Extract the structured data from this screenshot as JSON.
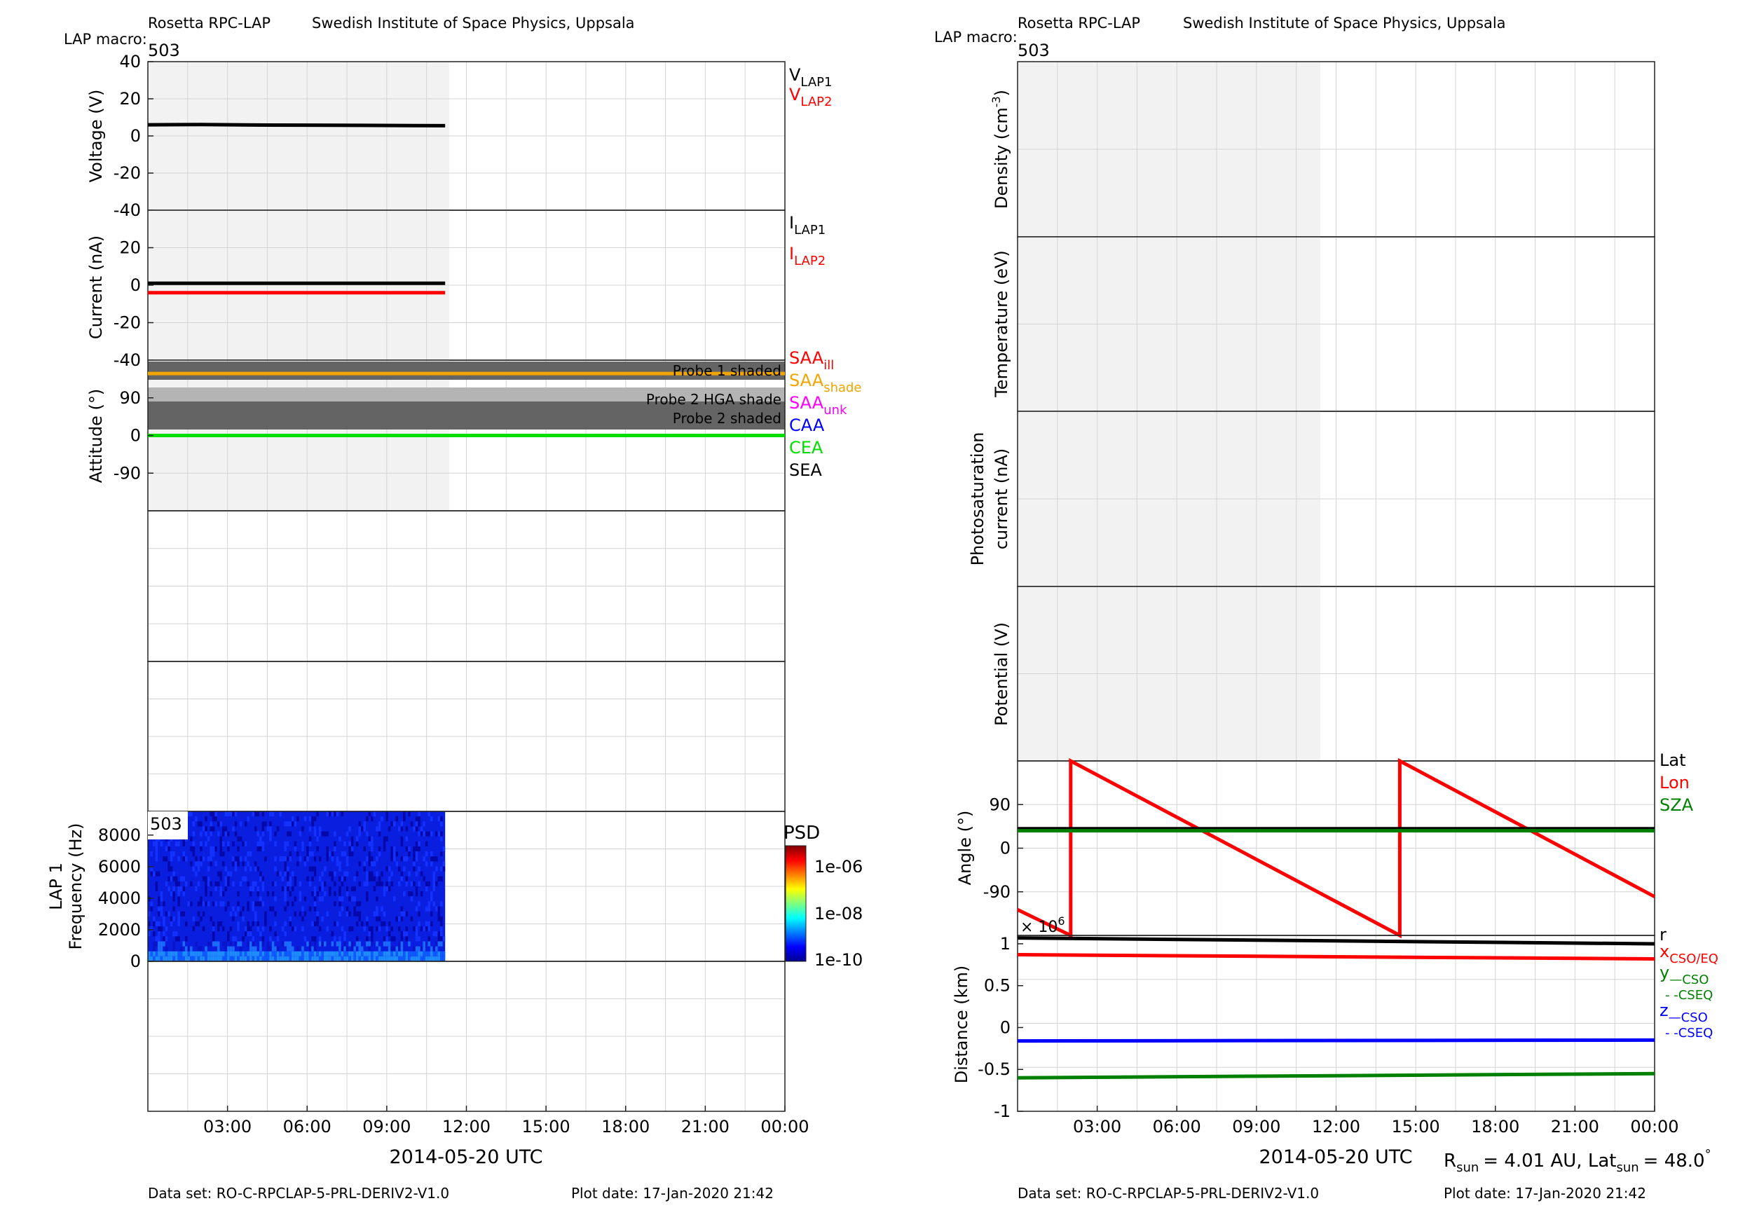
{
  "left_header": {
    "instrument": "Rosetta RPC-LAP",
    "institute": "Swedish Institute of Space Physics, Uppsala",
    "macro_label": "LAP macro:",
    "macro_value": "503"
  },
  "right_header": {
    "instrument": "Rosetta RPC-LAP",
    "institute": "Swedish Institute of Space Physics, Uppsala",
    "macro_label": "LAP macro:",
    "macro_value": "503"
  },
  "left_footer": {
    "x_title": "2014-05-20 UTC",
    "dataset": "Data set: RO-C-RPCLAP-5-PRL-DERIV2-V1.0",
    "plot_date": "Plot date: 17-Jan-2020 21:42"
  },
  "right_footer": {
    "x_title": "2014-05-20 UTC",
    "dataset": "Data set: RO-C-RPCLAP-5-PRL-DERIV2-V1.0",
    "plot_date": "Plot date: 17-Jan-2020 21:42",
    "rsun_label": "R",
    "rsun_sub": "sun",
    "rsun_value": "= 4.01 AU, Lat",
    "lat_sub": "sun",
    "lat_value": "= 48.0",
    "degree": "°"
  },
  "colors": {
    "black": "#000000",
    "red": "#ff0000",
    "orange": "#f0a500",
    "magenta": "#ff00ff",
    "blue": "#0000ff",
    "green": "#00dd00",
    "darkgreen": "#008000",
    "shade_bg": "#f2f2f2",
    "dark_band": "#646464",
    "mid_band": "#9a9a9a",
    "light_band": "#b4b4b4",
    "spec_blue": "#0a1ee0"
  },
  "chart_data": [
    {
      "type": "line",
      "id": "voltage",
      "ylabel": "Voltage (V)",
      "ylim": [
        -40,
        40
      ],
      "yticks": [
        "40",
        "20",
        "0",
        "-20",
        "-40"
      ],
      "legend": [
        {
          "main": "V",
          "sub": "LAP1",
          "color": "#000000"
        },
        {
          "main": "V",
          "sub": "LAP2",
          "color": "#ff0000"
        }
      ],
      "series": [
        {
          "name": "VLAP1",
          "color": "#000000",
          "x_hours": [
            0,
            2,
            4,
            6,
            8,
            10,
            11.2
          ],
          "values": [
            6.0,
            6.1,
            5.9,
            5.8,
            5.7,
            5.6,
            5.5
          ]
        }
      ]
    },
    {
      "type": "line",
      "id": "current",
      "ylabel": "Current (nA)",
      "ylim": [
        -40,
        40
      ],
      "yticks": [
        "20",
        "0",
        "-20",
        "-40"
      ],
      "legend": [
        {
          "main": "I",
          "sub": "LAP1",
          "color": "#000000"
        },
        {
          "main": "I",
          "sub": "LAP2",
          "color": "#ff0000"
        }
      ],
      "series": [
        {
          "name": "ILAP1",
          "color": "#000000",
          "x_hours": [
            0,
            11.2
          ],
          "values": [
            1,
            1
          ]
        },
        {
          "name": "ILAP2",
          "color": "#ff0000",
          "x_hours": [
            0,
            11.2
          ],
          "values": [
            -4,
            -4
          ]
        }
      ]
    },
    {
      "type": "line",
      "id": "attitude",
      "ylabel": "Attitude (°)",
      "ylim": [
        -180,
        180
      ],
      "yticks": [
        "90",
        "0",
        "-90"
      ],
      "annotations": [
        "Probe 1 shaded",
        "Probe 2 HGA shade",
        "Probe 2 shaded"
      ],
      "legend": [
        {
          "main": "SAA",
          "sub": "ill",
          "color": "#ff0000"
        },
        {
          "main": "SAA",
          "sub": "shade",
          "color": "#f0a500"
        },
        {
          "main": "SAA",
          "sub": "unk",
          "color": "#ff00ff"
        },
        {
          "main": "CAA",
          "sub": "",
          "color": "#0000ff"
        },
        {
          "main": "CEA",
          "sub": "",
          "color": "#00dd00"
        },
        {
          "main": "SEA",
          "sub": "",
          "color": "#000000"
        }
      ],
      "series": [
        {
          "name": "SAA shade",
          "color": "#f0a500",
          "x_hours": [
            0,
            24
          ],
          "values": [
            148,
            148
          ]
        },
        {
          "name": "CEA",
          "color": "#00dd00",
          "x_hours": [
            0,
            24
          ],
          "values": [
            0,
            0
          ]
        }
      ]
    },
    {
      "type": "heatmap",
      "id": "spectrogram",
      "ylabel": "LAP 1",
      "ylabel2": "Frequency (Hz)",
      "ylim": [
        0,
        9500
      ],
      "yticks": [
        "8000",
        "6000",
        "4000",
        "2000",
        "0"
      ],
      "x_range_hours": [
        0,
        11.2
      ],
      "label_box": "503",
      "colorbar": {
        "title": "PSD",
        "ticks": [
          "1e-06",
          "1e-08",
          "1e-10"
        ]
      }
    },
    {
      "type": "line",
      "id": "density",
      "ylabel": "Density (cm",
      "ylabel_sup": "-3",
      "ylabel_end": ")"
    },
    {
      "type": "line",
      "id": "temperature",
      "ylabel": "Temperature (eV)"
    },
    {
      "type": "line",
      "id": "photosat",
      "ylabel": "Photosaturation",
      "ylabel2": "current (nA)"
    },
    {
      "type": "line",
      "id": "potential",
      "ylabel": "Potential (V)"
    },
    {
      "type": "line",
      "id": "angle",
      "ylabel": "Angle (°)",
      "ylim": [
        -180,
        180
      ],
      "yticks": [
        "90",
        "0",
        "-90"
      ],
      "legend": [
        {
          "main": "Lat",
          "sub": "",
          "color": "#000000"
        },
        {
          "main": "Lon",
          "sub": "",
          "color": "#ff0000"
        },
        {
          "main": "SZA",
          "sub": "",
          "color": "#008000"
        }
      ],
      "series": [
        {
          "name": "Lon",
          "color": "#ff0000",
          "x_hours": [
            0,
            2.0,
            2.0,
            14.4,
            14.4,
            24
          ],
          "values": [
            -127,
            -180,
            180,
            -180,
            180,
            -100
          ]
        },
        {
          "name": "Lat",
          "color": "#000000",
          "x_hours": [
            0,
            24
          ],
          "values": [
            40,
            40
          ]
        },
        {
          "name": "SZA",
          "color": "#008000",
          "x_hours": [
            0,
            24
          ],
          "values": [
            36,
            36
          ]
        }
      ]
    },
    {
      "type": "line",
      "id": "distance",
      "ylabel": "Distance (km)",
      "ylim": [
        -1,
        1.1
      ],
      "yticks": [
        "1",
        "0.5",
        "0",
        "-0.5",
        "-1"
      ],
      "multiplier": "× 10",
      "multiplier_exp": "6",
      "legend": [
        {
          "main": "r",
          "sub": "",
          "color": "#000000"
        },
        {
          "main": "x",
          "sub": "CSO/EQ",
          "color": "#ff0000"
        },
        {
          "main": "y",
          "sub": "—CSO",
          "color": "#008000"
        },
        {
          "main": "",
          "sub": "- -CSEQ",
          "color": "#008000"
        },
        {
          "main": "z",
          "sub": "—CSO",
          "color": "#0000ff"
        },
        {
          "main": "",
          "sub": "- -CSEQ",
          "color": "#0000ff"
        }
      ],
      "series": [
        {
          "name": "r",
          "color": "#000000",
          "x_hours": [
            0,
            24
          ],
          "values": [
            1.07,
            1.0
          ]
        },
        {
          "name": "xCSO/EQ",
          "color": "#ff0000",
          "x_hours": [
            0,
            24
          ],
          "values": [
            0.87,
            0.82
          ]
        },
        {
          "name": "zCSO",
          "color": "#0000ff",
          "x_hours": [
            0,
            24
          ],
          "values": [
            -0.16,
            -0.15
          ]
        },
        {
          "name": "yCSO",
          "color": "#008000",
          "x_hours": [
            0,
            24
          ],
          "values": [
            -0.6,
            -0.55
          ]
        }
      ]
    }
  ],
  "x_axis": {
    "xlim_hours": [
      0,
      24
    ],
    "tick_labels": [
      "03:00",
      "06:00",
      "09:00",
      "12:00",
      "15:00",
      "18:00",
      "21:00",
      "00:00"
    ]
  }
}
